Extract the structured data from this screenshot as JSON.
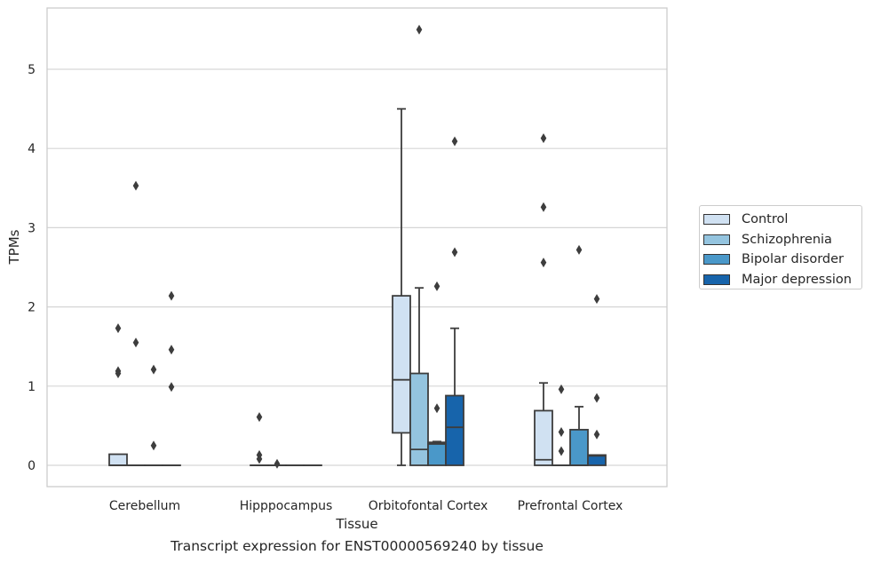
{
  "caption": "Transcript expression for ENST00000569240 by tissue",
  "legend_items": [
    {
      "label": "Control",
      "color": "#d0e1f2"
    },
    {
      "label": "Schizophrenia",
      "color": "#94c4df"
    },
    {
      "label": "Bipolar disorder",
      "color": "#4a98c9"
    },
    {
      "label": "Major depression",
      "color": "#1764ab"
    }
  ],
  "chart_data": {
    "type": "box",
    "xlabel": "Tissue",
    "ylabel": "TPMs",
    "categories": [
      "Cerebellum",
      "Hipppocampus",
      "Orbitofontal Cortex",
      "Prefrontal Cortex"
    ],
    "ylim": [
      -0.27,
      5.8
    ],
    "yticks": [
      0,
      1,
      2,
      3,
      4,
      5
    ],
    "grid": "horizontal",
    "legend_position": "right",
    "series": [
      {
        "name": "Control",
        "color": "#d0e1f2",
        "boxes": [
          {
            "min": 0,
            "q1": 0,
            "median": 0,
            "q3": 0.14,
            "max": 0.14,
            "outliers": [
              1.73,
              1.19,
              1.16
            ]
          },
          {
            "min": 0,
            "q1": 0,
            "median": 0,
            "q3": 0,
            "max": 0,
            "outliers": [
              0.61,
              0.13,
              0.08
            ]
          },
          {
            "min": 0,
            "q1": 0.41,
            "median": 1.08,
            "q3": 2.14,
            "max": 4.5,
            "outliers": []
          },
          {
            "min": 0,
            "q1": 0,
            "median": 0.07,
            "q3": 0.69,
            "max": 1.04,
            "outliers": [
              4.13,
              3.26,
              2.56
            ]
          }
        ]
      },
      {
        "name": "Schizophrenia",
        "color": "#94c4df",
        "boxes": [
          {
            "min": 0,
            "q1": 0,
            "median": 0,
            "q3": 0,
            "max": 0,
            "outliers": [
              3.53,
              1.55
            ]
          },
          {
            "min": 0,
            "q1": 0,
            "median": 0,
            "q3": 0,
            "max": 0,
            "outliers": [
              0.02
            ]
          },
          {
            "min": 0,
            "q1": 0,
            "median": 0.2,
            "q3": 1.16,
            "max": 2.24,
            "outliers": [
              5.5
            ]
          },
          {
            "min": 0,
            "q1": 0,
            "median": 0,
            "q3": 0,
            "max": 0,
            "outliers": [
              0.96,
              0.42,
              0.18
            ]
          }
        ]
      },
      {
        "name": "Bipolar disorder",
        "color": "#4a98c9",
        "boxes": [
          {
            "min": 0,
            "q1": 0,
            "median": 0,
            "q3": 0,
            "max": 0,
            "outliers": [
              1.21,
              0.25
            ]
          },
          {
            "min": 0,
            "q1": 0,
            "median": 0,
            "q3": 0,
            "max": 0,
            "outliers": []
          },
          {
            "min": 0,
            "q1": 0,
            "median": 0.27,
            "q3": 0.29,
            "max": 0.3,
            "outliers": [
              2.26,
              0.72
            ]
          },
          {
            "min": 0,
            "q1": 0,
            "median": 0,
            "q3": 0.45,
            "max": 0.74,
            "outliers": [
              2.72
            ]
          }
        ]
      },
      {
        "name": "Major depression",
        "color": "#1764ab",
        "boxes": [
          {
            "min": 0,
            "q1": 0,
            "median": 0,
            "q3": 0,
            "max": 0,
            "outliers": [
              2.14,
              1.46,
              0.99
            ]
          },
          {
            "min": 0,
            "q1": 0,
            "median": 0,
            "q3": 0,
            "max": 0,
            "outliers": []
          },
          {
            "min": 0,
            "q1": 0,
            "median": 0.48,
            "q3": 0.88,
            "max": 1.73,
            "outliers": [
              4.09,
              2.69
            ]
          },
          {
            "min": 0,
            "q1": 0,
            "median": 0.12,
            "q3": 0.13,
            "max": 0.13,
            "outliers": [
              2.1,
              0.85,
              0.39
            ]
          }
        ]
      }
    ]
  }
}
